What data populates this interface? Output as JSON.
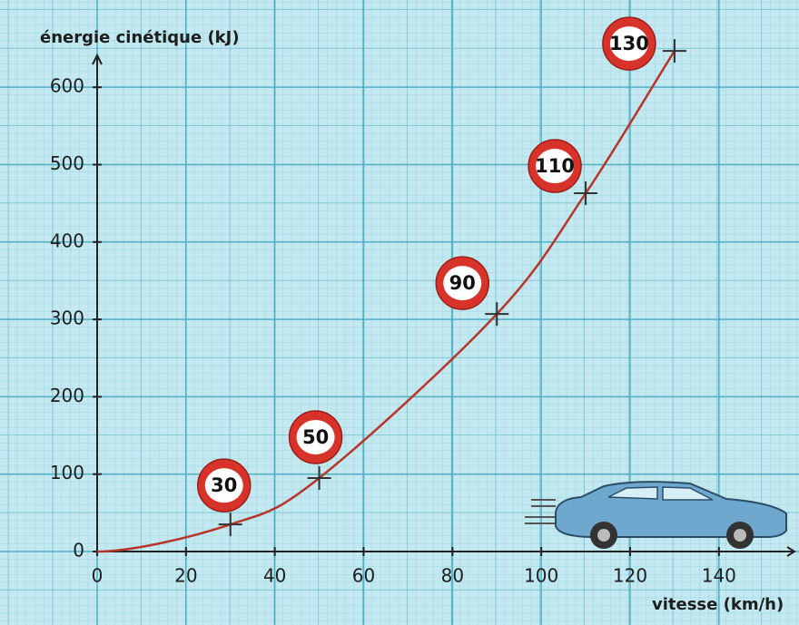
{
  "chart_data": {
    "type": "line",
    "y_label": "énergie cinétique (kJ)",
    "x_label": "vitesse (km/h)",
    "x": [
      30,
      50,
      90,
      110,
      130
    ],
    "series": [
      {
        "color": "#b8352a",
        "values": [
          35,
          95,
          307,
          463,
          647
        ]
      }
    ],
    "xlim": [
      0,
      157
    ],
    "xticks": [
      0,
      20,
      40,
      60,
      80,
      100,
      120,
      140
    ],
    "ylim": [
      0,
      660
    ],
    "yticks": [
      0,
      100,
      200,
      300,
      400,
      500,
      600
    ],
    "grid": true
  }
}
